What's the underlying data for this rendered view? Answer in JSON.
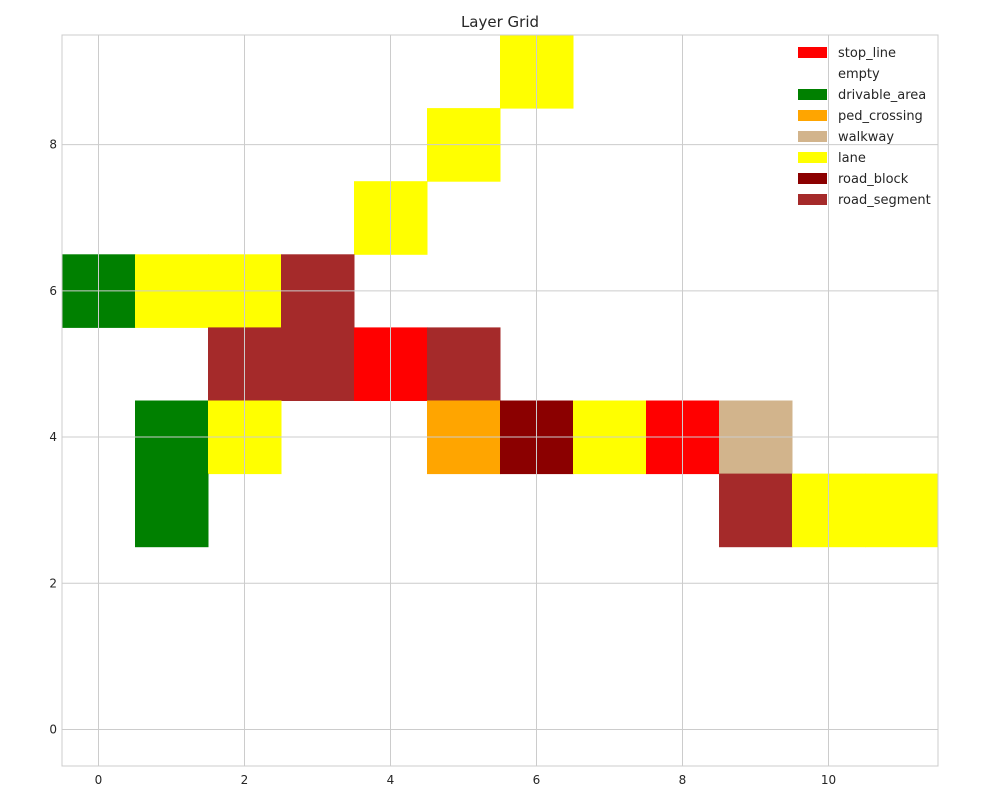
{
  "chart_data": {
    "type": "heatmap",
    "title": "Layer Grid",
    "xlabel": "",
    "ylabel": "",
    "xlim": [
      -0.5,
      11.5
    ],
    "ylim": [
      -0.5,
      9.5
    ],
    "xticks": [
      0,
      2,
      4,
      6,
      8,
      10
    ],
    "yticks": [
      0,
      2,
      4,
      6,
      8
    ],
    "grid": true,
    "legend_position": "top-right",
    "categories": [
      {
        "name": "stop_line",
        "color": "#ff0000"
      },
      {
        "name": "empty",
        "color": "#ffffff"
      },
      {
        "name": "drivable_area",
        "color": "#008000"
      },
      {
        "name": "ped_crossing",
        "color": "#ffa500"
      },
      {
        "name": "walkway",
        "color": "#d2b48c"
      },
      {
        "name": "lane",
        "color": "#ffff00"
      },
      {
        "name": "road_block",
        "color": "#8b0000"
      },
      {
        "name": "road_segment",
        "color": "#a52a2a"
      }
    ],
    "cells": [
      {
        "x": 6,
        "y": 9,
        "layer": "lane"
      },
      {
        "x": 5,
        "y": 8,
        "layer": "lane"
      },
      {
        "x": 4,
        "y": 7,
        "layer": "lane"
      },
      {
        "x": 0,
        "y": 6,
        "layer": "drivable_area"
      },
      {
        "x": 1,
        "y": 6,
        "layer": "lane"
      },
      {
        "x": 2,
        "y": 6,
        "layer": "lane"
      },
      {
        "x": 3,
        "y": 6,
        "layer": "road_segment"
      },
      {
        "x": 2,
        "y": 5,
        "layer": "road_segment"
      },
      {
        "x": 3,
        "y": 5,
        "layer": "road_segment"
      },
      {
        "x": 4,
        "y": 5,
        "layer": "stop_line"
      },
      {
        "x": 5,
        "y": 5,
        "layer": "road_segment"
      },
      {
        "x": 1,
        "y": 4,
        "layer": "drivable_area"
      },
      {
        "x": 2,
        "y": 4,
        "layer": "lane"
      },
      {
        "x": 5,
        "y": 4,
        "layer": "ped_crossing"
      },
      {
        "x": 6,
        "y": 4,
        "layer": "road_block"
      },
      {
        "x": 7,
        "y": 4,
        "layer": "lane"
      },
      {
        "x": 8,
        "y": 4,
        "layer": "stop_line"
      },
      {
        "x": 9,
        "y": 4,
        "layer": "walkway"
      },
      {
        "x": 1,
        "y": 3,
        "layer": "drivable_area"
      },
      {
        "x": 9,
        "y": 3,
        "layer": "road_segment"
      },
      {
        "x": 10,
        "y": 3,
        "layer": "lane"
      },
      {
        "x": 11,
        "y": 3,
        "layer": "lane"
      }
    ]
  }
}
